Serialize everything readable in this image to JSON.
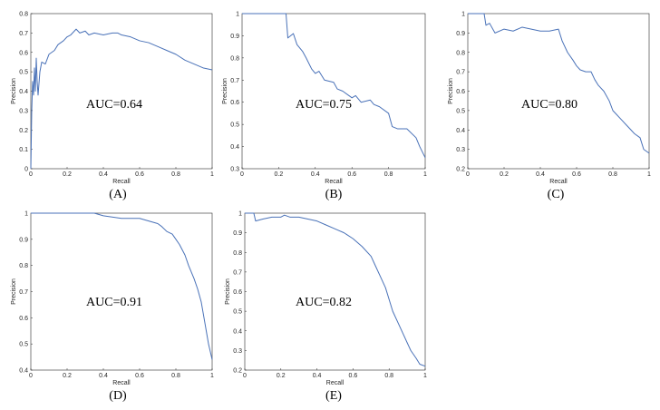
{
  "figure": {
    "series_color": "#4a72b8"
  },
  "chart_data": [
    {
      "type": "line",
      "id": "A",
      "panel_label": "(A)",
      "auc_label": "AUC=0.64",
      "xlabel": "Recall",
      "ylabel": "Precision",
      "xlim": [
        0,
        1
      ],
      "ylim": [
        0,
        0.8
      ],
      "xticks": [
        "0",
        "0.2",
        "0.4",
        "0.6",
        "0.8",
        "1"
      ],
      "yticks": [
        "0",
        "0.1",
        "0.2",
        "0.3",
        "0.4",
        "0.5",
        "0.6",
        "0.7",
        "0.8"
      ],
      "x": [
        0,
        0.005,
        0.01,
        0.015,
        0.02,
        0.025,
        0.03,
        0.035,
        0.04,
        0.05,
        0.06,
        0.08,
        0.1,
        0.13,
        0.15,
        0.18,
        0.2,
        0.22,
        0.25,
        0.27,
        0.3,
        0.32,
        0.35,
        0.4,
        0.45,
        0.48,
        0.5,
        0.55,
        0.6,
        0.65,
        0.7,
        0.75,
        0.8,
        0.85,
        0.9,
        0.95,
        1.0
      ],
      "y": [
        0.0,
        0.3,
        0.45,
        0.38,
        0.52,
        0.4,
        0.57,
        0.45,
        0.38,
        0.5,
        0.55,
        0.54,
        0.59,
        0.61,
        0.64,
        0.66,
        0.68,
        0.69,
        0.72,
        0.7,
        0.71,
        0.69,
        0.7,
        0.69,
        0.7,
        0.7,
        0.69,
        0.68,
        0.66,
        0.65,
        0.63,
        0.61,
        0.59,
        0.56,
        0.54,
        0.52,
        0.51
      ]
    },
    {
      "type": "line",
      "id": "B",
      "panel_label": "(B)",
      "auc_label": "AUC=0.75",
      "xlabel": "Recall",
      "ylabel": "Precision",
      "xlim": [
        0,
        1
      ],
      "ylim": [
        0.3,
        1
      ],
      "xticks": [
        "0",
        "0.2",
        "0.4",
        "0.6",
        "0.8",
        "1"
      ],
      "yticks": [
        "0.3",
        "0.4",
        "0.5",
        "0.6",
        "0.7",
        "0.8",
        "0.9",
        "1"
      ],
      "x": [
        0,
        0.05,
        0.1,
        0.15,
        0.2,
        0.24,
        0.25,
        0.28,
        0.3,
        0.33,
        0.35,
        0.38,
        0.4,
        0.42,
        0.45,
        0.5,
        0.52,
        0.55,
        0.6,
        0.62,
        0.65,
        0.7,
        0.72,
        0.75,
        0.8,
        0.82,
        0.85,
        0.9,
        0.95,
        0.97,
        1.0
      ],
      "y": [
        1.0,
        1.0,
        1.0,
        1.0,
        1.0,
        1.0,
        0.89,
        0.91,
        0.86,
        0.83,
        0.8,
        0.75,
        0.73,
        0.74,
        0.7,
        0.69,
        0.66,
        0.65,
        0.62,
        0.63,
        0.6,
        0.61,
        0.59,
        0.58,
        0.55,
        0.49,
        0.48,
        0.48,
        0.44,
        0.4,
        0.35
      ]
    },
    {
      "type": "line",
      "id": "C",
      "panel_label": "(C)",
      "auc_label": "AUC=0.80",
      "xlabel": "Recall",
      "ylabel": "Precision",
      "xlim": [
        0,
        1
      ],
      "ylim": [
        0.2,
        1
      ],
      "xticks": [
        "0",
        "0.2",
        "0.4",
        "0.6",
        "0.8",
        "1"
      ],
      "yticks": [
        "0.2",
        "0.3",
        "0.4",
        "0.5",
        "0.6",
        "0.7",
        "0.8",
        "0.9",
        "1"
      ],
      "x": [
        0,
        0.05,
        0.09,
        0.1,
        0.12,
        0.15,
        0.2,
        0.25,
        0.3,
        0.35,
        0.4,
        0.45,
        0.5,
        0.52,
        0.55,
        0.58,
        0.6,
        0.62,
        0.65,
        0.68,
        0.7,
        0.72,
        0.75,
        0.78,
        0.8,
        0.82,
        0.85,
        0.88,
        0.9,
        0.92,
        0.95,
        0.97,
        1.0
      ],
      "y": [
        1.0,
        1.0,
        1.0,
        0.94,
        0.95,
        0.9,
        0.92,
        0.91,
        0.93,
        0.92,
        0.91,
        0.91,
        0.92,
        0.86,
        0.8,
        0.76,
        0.73,
        0.71,
        0.7,
        0.7,
        0.66,
        0.63,
        0.6,
        0.55,
        0.5,
        0.48,
        0.45,
        0.42,
        0.4,
        0.38,
        0.36,
        0.3,
        0.28
      ]
    },
    {
      "type": "line",
      "id": "D",
      "panel_label": "(D)",
      "auc_label": "AUC=0.91",
      "xlabel": "Recall",
      "ylabel": "Precision",
      "xlim": [
        0,
        1
      ],
      "ylim": [
        0.4,
        1
      ],
      "xticks": [
        "0",
        "0.2",
        "0.4",
        "0.6",
        "0.8",
        "1"
      ],
      "yticks": [
        "0.4",
        "0.5",
        "0.6",
        "0.7",
        "0.8",
        "0.9",
        "1"
      ],
      "x": [
        0,
        0.1,
        0.2,
        0.3,
        0.35,
        0.4,
        0.5,
        0.55,
        0.6,
        0.65,
        0.7,
        0.72,
        0.75,
        0.78,
        0.8,
        0.82,
        0.85,
        0.87,
        0.9,
        0.92,
        0.94,
        0.95,
        0.96,
        0.97,
        0.98,
        0.99,
        1.0
      ],
      "y": [
        1.0,
        1.0,
        1.0,
        1.0,
        1.0,
        0.99,
        0.98,
        0.98,
        0.98,
        0.97,
        0.96,
        0.95,
        0.93,
        0.92,
        0.9,
        0.88,
        0.84,
        0.8,
        0.75,
        0.71,
        0.66,
        0.62,
        0.58,
        0.54,
        0.5,
        0.47,
        0.44
      ]
    },
    {
      "type": "line",
      "id": "E",
      "panel_label": "(E)",
      "auc_label": "AUC=0.82",
      "xlabel": "Recall",
      "ylabel": "Precision",
      "xlim": [
        0,
        1
      ],
      "ylim": [
        0.2,
        1
      ],
      "xticks": [
        "0",
        "0.2",
        "0.4",
        "0.6",
        "0.8",
        "1"
      ],
      "yticks": [
        "0.2",
        "0.3",
        "0.4",
        "0.5",
        "0.6",
        "0.7",
        "0.8",
        "0.9",
        "1"
      ],
      "x": [
        0,
        0.03,
        0.05,
        0.06,
        0.1,
        0.15,
        0.2,
        0.22,
        0.25,
        0.3,
        0.35,
        0.4,
        0.45,
        0.5,
        0.55,
        0.6,
        0.65,
        0.7,
        0.72,
        0.75,
        0.78,
        0.8,
        0.82,
        0.85,
        0.88,
        0.9,
        0.92,
        0.95,
        0.97,
        1.0
      ],
      "y": [
        1.0,
        1.0,
        1.0,
        0.96,
        0.97,
        0.98,
        0.98,
        0.99,
        0.98,
        0.98,
        0.97,
        0.96,
        0.94,
        0.92,
        0.9,
        0.87,
        0.83,
        0.78,
        0.74,
        0.68,
        0.62,
        0.56,
        0.5,
        0.44,
        0.38,
        0.34,
        0.3,
        0.26,
        0.23,
        0.22
      ]
    }
  ]
}
